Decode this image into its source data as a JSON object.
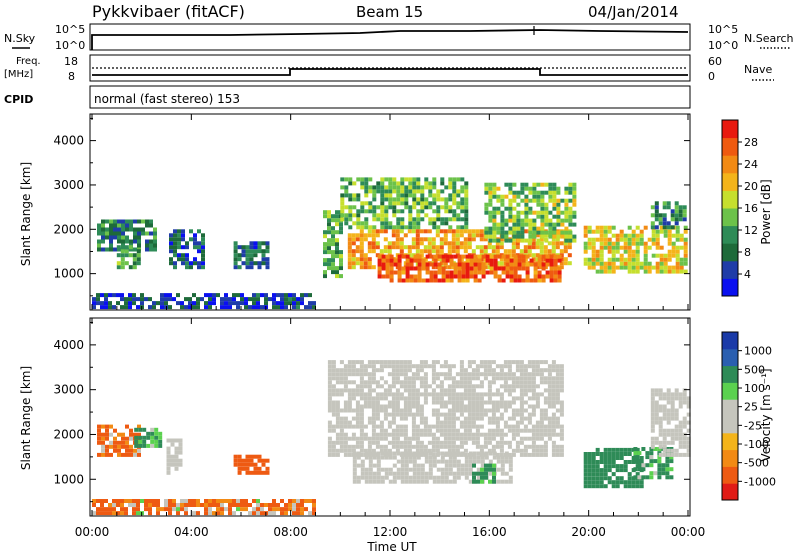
{
  "header": {
    "station": "Pykkvibaer (fitACF)",
    "beam": "Beam 15",
    "date": "04/Jan/2014"
  },
  "top_panels": {
    "nsky": {
      "label": "N.Sky",
      "ticks": [
        "10^5",
        "10^0"
      ],
      "right_label": "N.Search",
      "right_ticks": [
        "10^5",
        "10^0"
      ]
    },
    "freq": {
      "label_line1": "Freq.",
      "label_line2": "[MHz]",
      "ticks": [
        "18",
        "8"
      ],
      "right_label": "Nave",
      "right_ticks": [
        "60",
        "0"
      ]
    },
    "cpid": {
      "label": "CPID",
      "text": "normal (fast stereo) 153"
    }
  },
  "colors": {
    "power_scale": [
      "#0a10f0",
      "#1f3ca8",
      "#1e6a3a",
      "#2e8b57",
      "#6cc24a",
      "#c6df2e",
      "#f4b41a",
      "#f28a14",
      "#ef5a10",
      "#e8190f"
    ],
    "velocity_scale": [
      "#e11b16",
      "#ee5a12",
      "#f28a14",
      "#f4b41a",
      "#c5c5bd",
      "#c5c5bd",
      "#5bd14f",
      "#2e8b57",
      "#2a5fb0",
      "#1a3aa8"
    ],
    "ground": "#c5c5bd"
  },
  "chart_data": [
    {
      "type": "heatmap",
      "name": "power",
      "ylabel": "Slant Range [km]",
      "yticks": [
        "4000",
        "3000",
        "2000",
        "1000"
      ],
      "ylim": [
        180,
        4600
      ],
      "xlim_hours": [
        0,
        24
      ],
      "colorbar": {
        "label": "Power [dB]",
        "ticks": [
          "28",
          "24",
          "20",
          "16",
          "12",
          "8",
          "4"
        ],
        "range": [
          0,
          32
        ]
      },
      "regions": [
        {
          "t0": 0.2,
          "t1": 2.6,
          "r0": 1500,
          "r1": 2200,
          "level": 9
        },
        {
          "t0": 1.0,
          "t1": 1.9,
          "r0": 1100,
          "r1": 1600,
          "level": 12
        },
        {
          "t0": 3.1,
          "t1": 4.4,
          "r0": 1100,
          "r1": 2000,
          "level": 7
        },
        {
          "t0": 5.7,
          "t1": 7.1,
          "r0": 1100,
          "r1": 1700,
          "level": 8
        },
        {
          "t0": 9.3,
          "t1": 10.1,
          "r0": 900,
          "r1": 2400,
          "level": 12
        },
        {
          "t0": 10.0,
          "t1": 15.0,
          "r0": 2000,
          "r1": 3100,
          "level": 14
        },
        {
          "t0": 10.3,
          "t1": 19.2,
          "r0": 1100,
          "r1": 2000,
          "level": 22
        },
        {
          "t0": 11.5,
          "t1": 18.8,
          "r0": 800,
          "r1": 1400,
          "level": 27
        },
        {
          "t0": 15.8,
          "t1": 19.5,
          "r0": 1700,
          "r1": 3000,
          "level": 15
        },
        {
          "t0": 19.8,
          "t1": 23.9,
          "r0": 1000,
          "r1": 2000,
          "level": 19
        },
        {
          "t0": 22.5,
          "t1": 23.9,
          "r0": 2000,
          "r1": 2600,
          "level": 10
        },
        {
          "t0": 0.0,
          "t1": 9.0,
          "r0": 200,
          "r1": 480,
          "level": 5
        }
      ]
    },
    {
      "type": "heatmap",
      "name": "velocity",
      "ylabel": "Slant Range [km]",
      "yticks": [
        "4000",
        "3000",
        "2000",
        "1000"
      ],
      "ylim": [
        180,
        4600
      ],
      "xlim_hours": [
        0,
        24
      ],
      "xticks": [
        "00:00",
        "04:00",
        "08:00",
        "12:00",
        "16:00",
        "20:00",
        "00:00"
      ],
      "xlabel": "Time UT",
      "colorbar": {
        "label": "Velocity [m s⁻¹]",
        "ticks": [
          "1000",
          "500",
          "100",
          "25",
          "-25",
          "-100",
          "-500",
          "-1000"
        ]
      },
      "regions": [
        {
          "t0": 0.2,
          "t1": 1.9,
          "r0": 1500,
          "r1": 2200,
          "vel": -150
        },
        {
          "t0": 1.7,
          "t1": 2.7,
          "r0": 1700,
          "r1": 2100,
          "vel": 150
        },
        {
          "t0": 3.0,
          "t1": 3.6,
          "r0": 1100,
          "r1": 1900,
          "vel": 0
        },
        {
          "t0": 5.7,
          "t1": 7.1,
          "r0": 1100,
          "r1": 1500,
          "vel": -300
        },
        {
          "t0": 9.5,
          "t1": 19.0,
          "r0": 1500,
          "r1": 3600,
          "vel": 0
        },
        {
          "t0": 10.5,
          "t1": 16.8,
          "r0": 900,
          "r1": 1600,
          "vel": 0
        },
        {
          "t0": 15.3,
          "t1": 16.2,
          "r0": 900,
          "r1": 1300,
          "vel": 200
        },
        {
          "t0": 19.8,
          "t1": 22.2,
          "r0": 800,
          "r1": 1700,
          "vel": 300
        },
        {
          "t0": 21.8,
          "t1": 23.3,
          "r0": 1000,
          "r1": 1700,
          "vel": 150
        },
        {
          "t0": 22.5,
          "t1": 24.0,
          "r0": 1500,
          "r1": 3000,
          "vel": 0
        },
        {
          "t0": 0.0,
          "t1": 9.0,
          "r0": 200,
          "r1": 480,
          "vel": -120
        }
      ]
    }
  ]
}
